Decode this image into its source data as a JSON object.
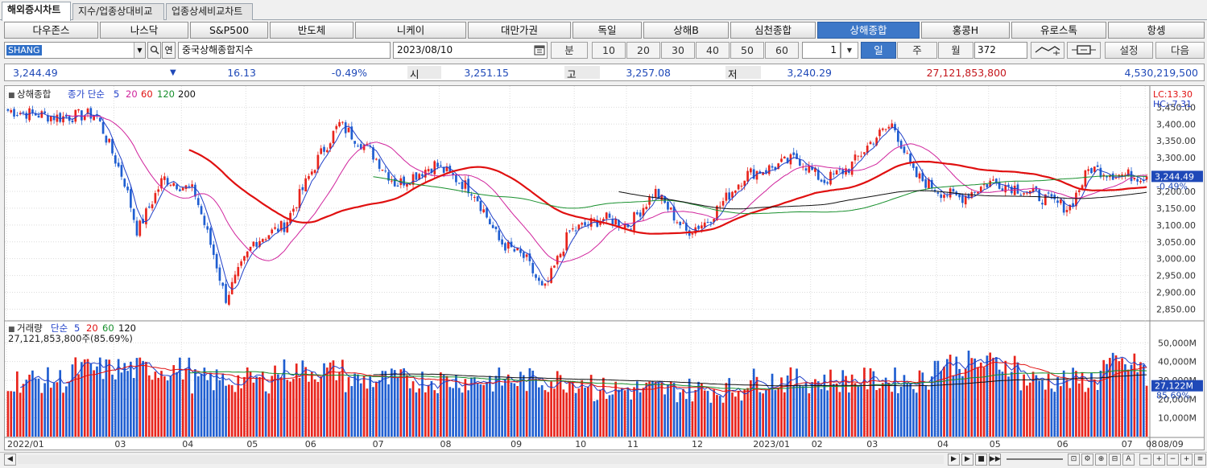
{
  "tabs": [
    "해외증시차트",
    "지수/업종상대비교",
    "업종상세비교차트"
  ],
  "markets": [
    "다우존스",
    "나스닥",
    "S&P500",
    "반도체",
    "니케이",
    "대만가권",
    "독일",
    "상해B",
    "심천종합",
    "상해종합",
    "홍콩H",
    "유로스톡",
    "항셍"
  ],
  "active_market": "상해종합",
  "symbol": {
    "code": "SHANG",
    "name": "중국상해종합지수",
    "date": "2023/08/10",
    "count_value": "372",
    "spin_value": "1"
  },
  "period": {
    "minute_label": "분",
    "minutes": [
      "10",
      "20",
      "30",
      "40",
      "50",
      "60"
    ],
    "day": "일",
    "week": "주",
    "month": "월"
  },
  "buttons": {
    "settings": "설정",
    "next": "다음"
  },
  "quote": {
    "price": "3,244.49",
    "change": "16.13",
    "change_pct": "-0.49%",
    "open_label": "시",
    "open": "3,251.15",
    "high_label": "고",
    "high": "3,257.08",
    "low_label": "저",
    "low": "3,240.29",
    "volume": "27,121,853,800",
    "amount": "4,530,219,500"
  },
  "price_panel": {
    "legend_title": "상해종합",
    "legend_ma": "종가 단순",
    "ma_periods": [
      "5",
      "20",
      "60",
      "120",
      "200"
    ],
    "lc_label": "LC:13.30",
    "hc_label": "HC:-7.31",
    "current_tag": "3,244.49",
    "current_pct": "-0.49%",
    "y_ticks": [
      "3,450.00",
      "3,400.00",
      "3,350.00",
      "3,300.00",
      "3,250.00",
      "3,200.00",
      "3,150.00",
      "3,100.00",
      "3,050.00",
      "3,000.00",
      "2,950.00",
      "2,900.00",
      "2,850.00"
    ]
  },
  "volume_panel": {
    "legend_title": "거래량",
    "legend_ma": "단순",
    "ma_periods": [
      "5",
      "20",
      "60",
      "120"
    ],
    "value_line": "27,121,853,800주(85.69%)",
    "current_tag": "27,122M",
    "current_pct": "85.69%",
    "y_ticks": [
      "50,000M",
      "40,000M",
      "30,000M",
      "20,000M",
      "10,000M"
    ]
  },
  "x_labels": [
    "2022/01",
    "03",
    "04",
    "05",
    "06",
    "07",
    "08",
    "09",
    "10",
    "11",
    "12",
    "2023/01",
    "02",
    "03",
    "04",
    "05",
    "06",
    "07",
    "08"
  ],
  "x_last_date": "08/09",
  "colors": {
    "up": "#e8241c",
    "down": "#1f5ed1",
    "ma5": "#1f3fc8",
    "ma20": "#d0239c",
    "ma60": "#e01010",
    "ma120": "#178f2c",
    "ma200": "#111111",
    "active": "#3d78c8"
  }
}
